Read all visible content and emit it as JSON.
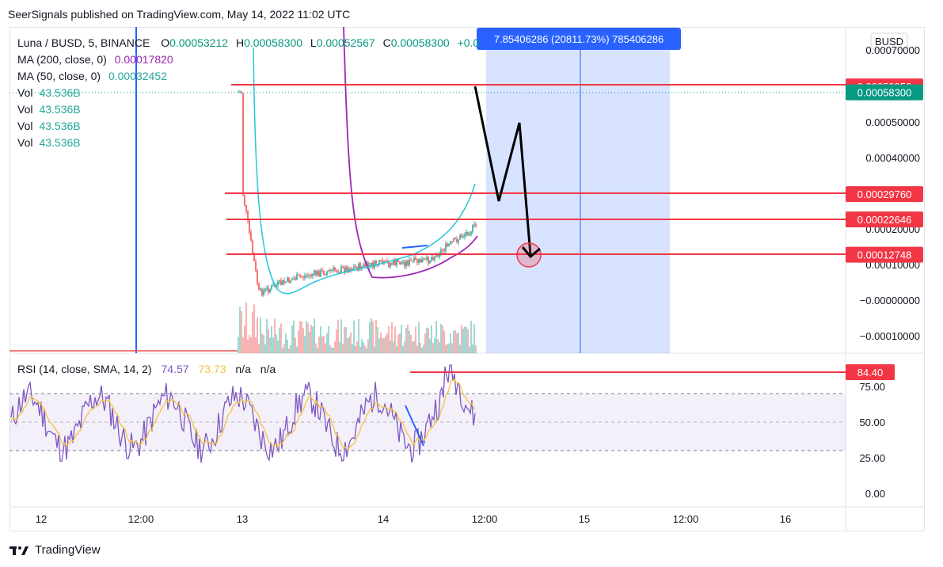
{
  "header": {
    "published": "SeerSignals published on TradingView.com, May 14, 2022 11:02 UTC"
  },
  "legend": {
    "symbol": "Luna / BUSD, 5, BINANCE",
    "open_label": "O",
    "open": "0.00053212",
    "high_label": "H",
    "high": "0.00058300",
    "low_label": "L",
    "low": "0.00052567",
    "close_label": "C",
    "close": "0.00058300",
    "change": "+0.0",
    "ma200_label": "MA (200, close, 0)",
    "ma200": "0.00017820",
    "ma50_label": "MA (50, close, 0)",
    "ma50": "0.00032452",
    "vol_label": "Vol",
    "vol": "43.536B"
  },
  "measure": {
    "text": "7.85406286 (20811.73%) 785406286"
  },
  "currency_button": "BUSD",
  "price_axis": {
    "ticks": [
      "0.00070000",
      "0.00050000",
      "0.00040000",
      "0.00020000",
      "0.00010000",
      "−0.00000000",
      "−0.00010000"
    ],
    "badges": [
      {
        "label": "0.00059959",
        "color": "#f23645"
      },
      {
        "label": "0.00058300",
        "color": "#089981"
      },
      {
        "label": "0.00029760",
        "color": "#f23645"
      },
      {
        "label": "0.00022646",
        "color": "#f23645"
      },
      {
        "label": "0.00012748",
        "color": "#f23645"
      }
    ]
  },
  "rsi": {
    "label": "RSI (14, close, SMA, 14, 2)",
    "value": "74.57",
    "sma": "73.73",
    "na1": "n/a",
    "na2": "n/a",
    "ticks": [
      "75.00",
      "50.00",
      "25.00",
      "0.00"
    ],
    "badge": "84.40"
  },
  "time_axis": {
    "ticks": [
      "12",
      "12:00",
      "13",
      "14",
      "12:00",
      "15",
      "12:00",
      "16"
    ]
  },
  "footer": {
    "brand": "TradingView"
  },
  "colors": {
    "up": "#26a69a",
    "down": "#ef5350",
    "ma200": "#9c27b0",
    "ma50": "#26c6da",
    "level": "#f23645",
    "rsi": "#7e57c2",
    "rsi_sma": "#f5c242",
    "range": "#2962ff"
  },
  "chart_data": {
    "type": "line",
    "title": "Luna / BUSD, 5, BINANCE",
    "xlabel": "",
    "ylabel": "",
    "x": [
      "May 12",
      "May 12 12:00",
      "May 13",
      "May 13 12:00",
      "May 14",
      "May 14 12:00",
      "May 15",
      "May 15 12:00",
      "May 16"
    ],
    "ylim": [
      -0.00012,
      0.00078
    ],
    "ohlc_last": {
      "open": 0.00053212,
      "high": 0.000583,
      "low": 0.00052567,
      "close": 0.000583
    },
    "price_path": [
      {
        "x": "May 13 00:00",
        "y": 0.00072
      },
      {
        "x": "May 13 00:05",
        "y": 0.0003
      },
      {
        "x": "May 13 02:00",
        "y": 2e-05
      },
      {
        "x": "May 13 06:00",
        "y": 6e-05
      },
      {
        "x": "May 13 10:00",
        "y": 8e-05
      },
      {
        "x": "May 13 16:00",
        "y": 0.0001
      },
      {
        "x": "May 13 22:00",
        "y": 0.00011
      },
      {
        "x": "May 14 04:00",
        "y": 0.00021
      },
      {
        "x": "May 14 08:00",
        "y": 0.00016
      },
      {
        "x": "May 14 11:00",
        "y": 0.000583
      }
    ],
    "series": [
      {
        "name": "MA (200, close, 0)",
        "last": 0.0001782
      },
      {
        "name": "MA (50, close, 0)",
        "last": 0.00032452
      },
      {
        "name": "Vol",
        "last": "43.536B"
      }
    ],
    "levels": [
      0.00059959,
      0.0002976,
      0.00022646,
      0.00012748
    ],
    "projection": [
      {
        "x": "May 14 11:00",
        "y": 0.00059959
      },
      {
        "x": "May 14 12:30",
        "y": 0.0002976
      },
      {
        "x": "May 14 14:00",
        "y": 0.0005
      },
      {
        "x": "May 14 15:00",
        "y": 0.00012748
      }
    ],
    "rsi": {
      "label": "RSI (14, close, SMA, 14, 2)",
      "value": 74.57,
      "sma": 73.73,
      "level": 84.4,
      "bands": [
        30,
        70
      ],
      "ylim": [
        0,
        100
      ]
    }
  }
}
